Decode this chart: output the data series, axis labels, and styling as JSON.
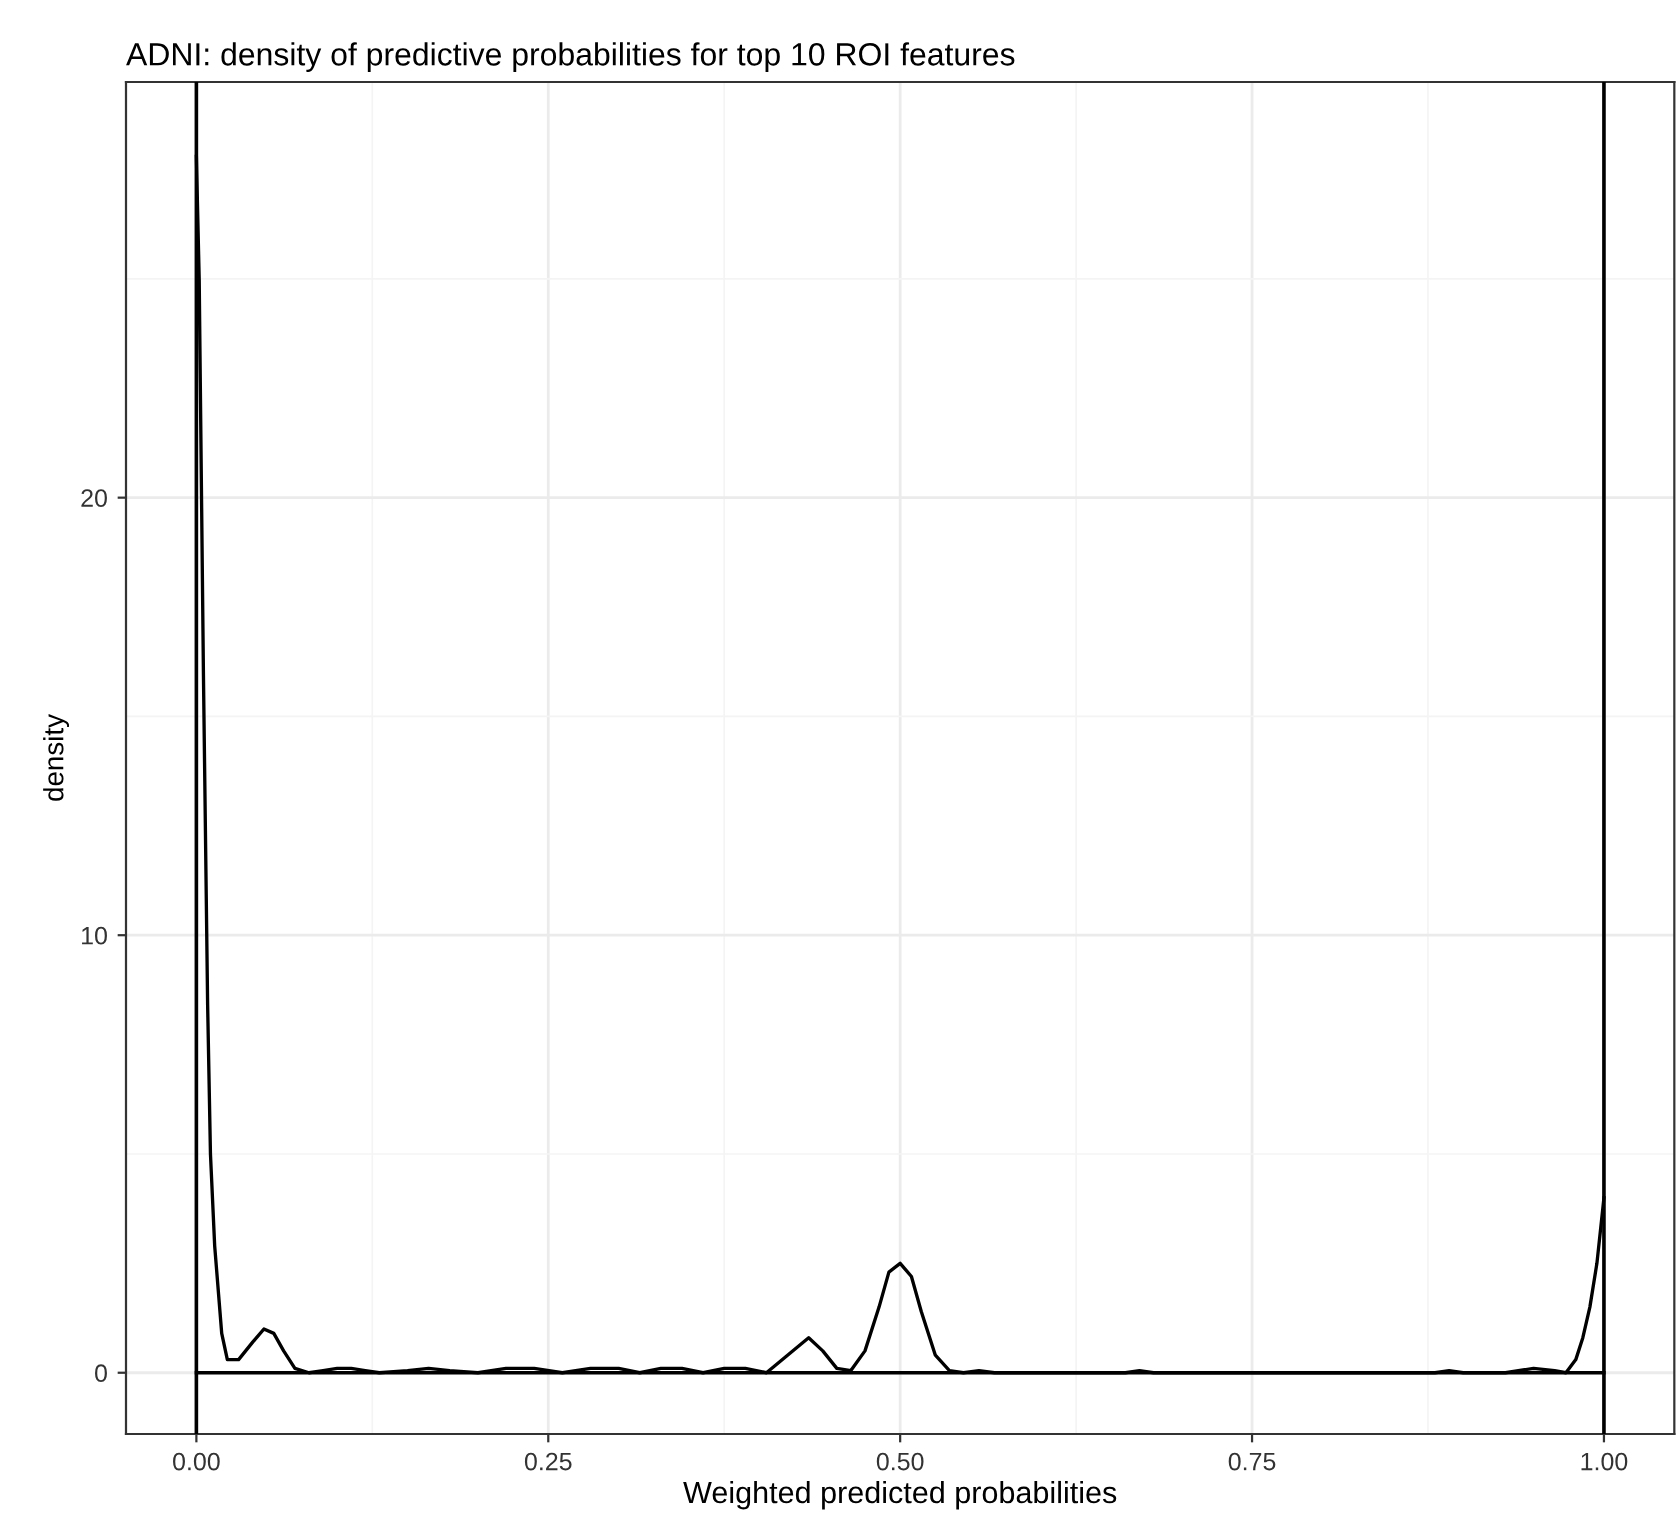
{
  "chart_data": {
    "type": "line",
    "title": "ADNI: density of predictive probabilities for top 10 ROI features",
    "xlabel": "Weighted predicted probabilities",
    "ylabel": "density",
    "xlim": [
      -0.05,
      1.05
    ],
    "ylim": [
      -1.4,
      29.5
    ],
    "xticks": [
      {
        "value": 0,
        "label": "0.00"
      },
      {
        "value": 0.25,
        "label": "0.25"
      },
      {
        "value": 0.5,
        "label": "0.50"
      },
      {
        "value": 0.75,
        "label": "0.75"
      },
      {
        "value": 1,
        "label": "1.00"
      }
    ],
    "yticks": [
      0,
      10,
      20
    ],
    "grid": true,
    "series": [
      {
        "color": "#000000",
        "x": [
          0,
          0.002,
          0.005,
          0.008,
          0.01,
          0.013,
          0.018,
          0.022,
          0.03,
          0.04,
          0.048,
          0.055,
          0.062,
          0.07,
          0.08,
          0.09,
          0.1,
          0.11,
          0.12,
          0.13,
          0.15,
          0.165,
          0.18,
          0.2,
          0.22,
          0.24,
          0.26,
          0.28,
          0.3,
          0.315,
          0.33,
          0.345,
          0.36,
          0.375,
          0.39,
          0.405,
          0.42,
          0.435,
          0.445,
          0.455,
          0.465,
          0.475,
          0.485,
          0.492,
          0.5,
          0.508,
          0.515,
          0.525,
          0.535,
          0.545,
          0.556,
          0.567,
          0.6,
          0.66,
          0.67,
          0.68,
          0.75,
          0.88,
          0.89,
          0.9,
          0.93,
          0.95,
          0.965,
          0.973,
          0.98,
          0.985,
          0.99,
          0.995,
          1
        ],
        "values": [
          27.8,
          25,
          16,
          8.4,
          5,
          2.9,
          0.9,
          0.3,
          0.3,
          0.7,
          1.0,
          0.9,
          0.5,
          0.1,
          0,
          0.05,
          0.1,
          0.1,
          0.05,
          0,
          0.05,
          0.1,
          0.05,
          0,
          0.1,
          0.1,
          0,
          0.1,
          0.1,
          0,
          0.1,
          0.1,
          0,
          0.1,
          0.1,
          0,
          0.4,
          0.8,
          0.5,
          0.1,
          0.05,
          0.5,
          1.5,
          2.3,
          2.5,
          2.2,
          1.4,
          0.4,
          0.05,
          0,
          0.05,
          0,
          0,
          0,
          0.05,
          0,
          0,
          0,
          0.05,
          0,
          0,
          0.1,
          0.05,
          0,
          0.3,
          0.8,
          1.5,
          2.5,
          4.0
        ]
      },
      {
        "color": "#000000",
        "x": [
          0,
          1
        ],
        "values": [
          0,
          0
        ]
      }
    ],
    "ref_lines": [
      {
        "axis": "x",
        "value": 0,
        "color": "#000000"
      },
      {
        "axis": "x",
        "value": 1,
        "color": "#000000"
      }
    ]
  }
}
